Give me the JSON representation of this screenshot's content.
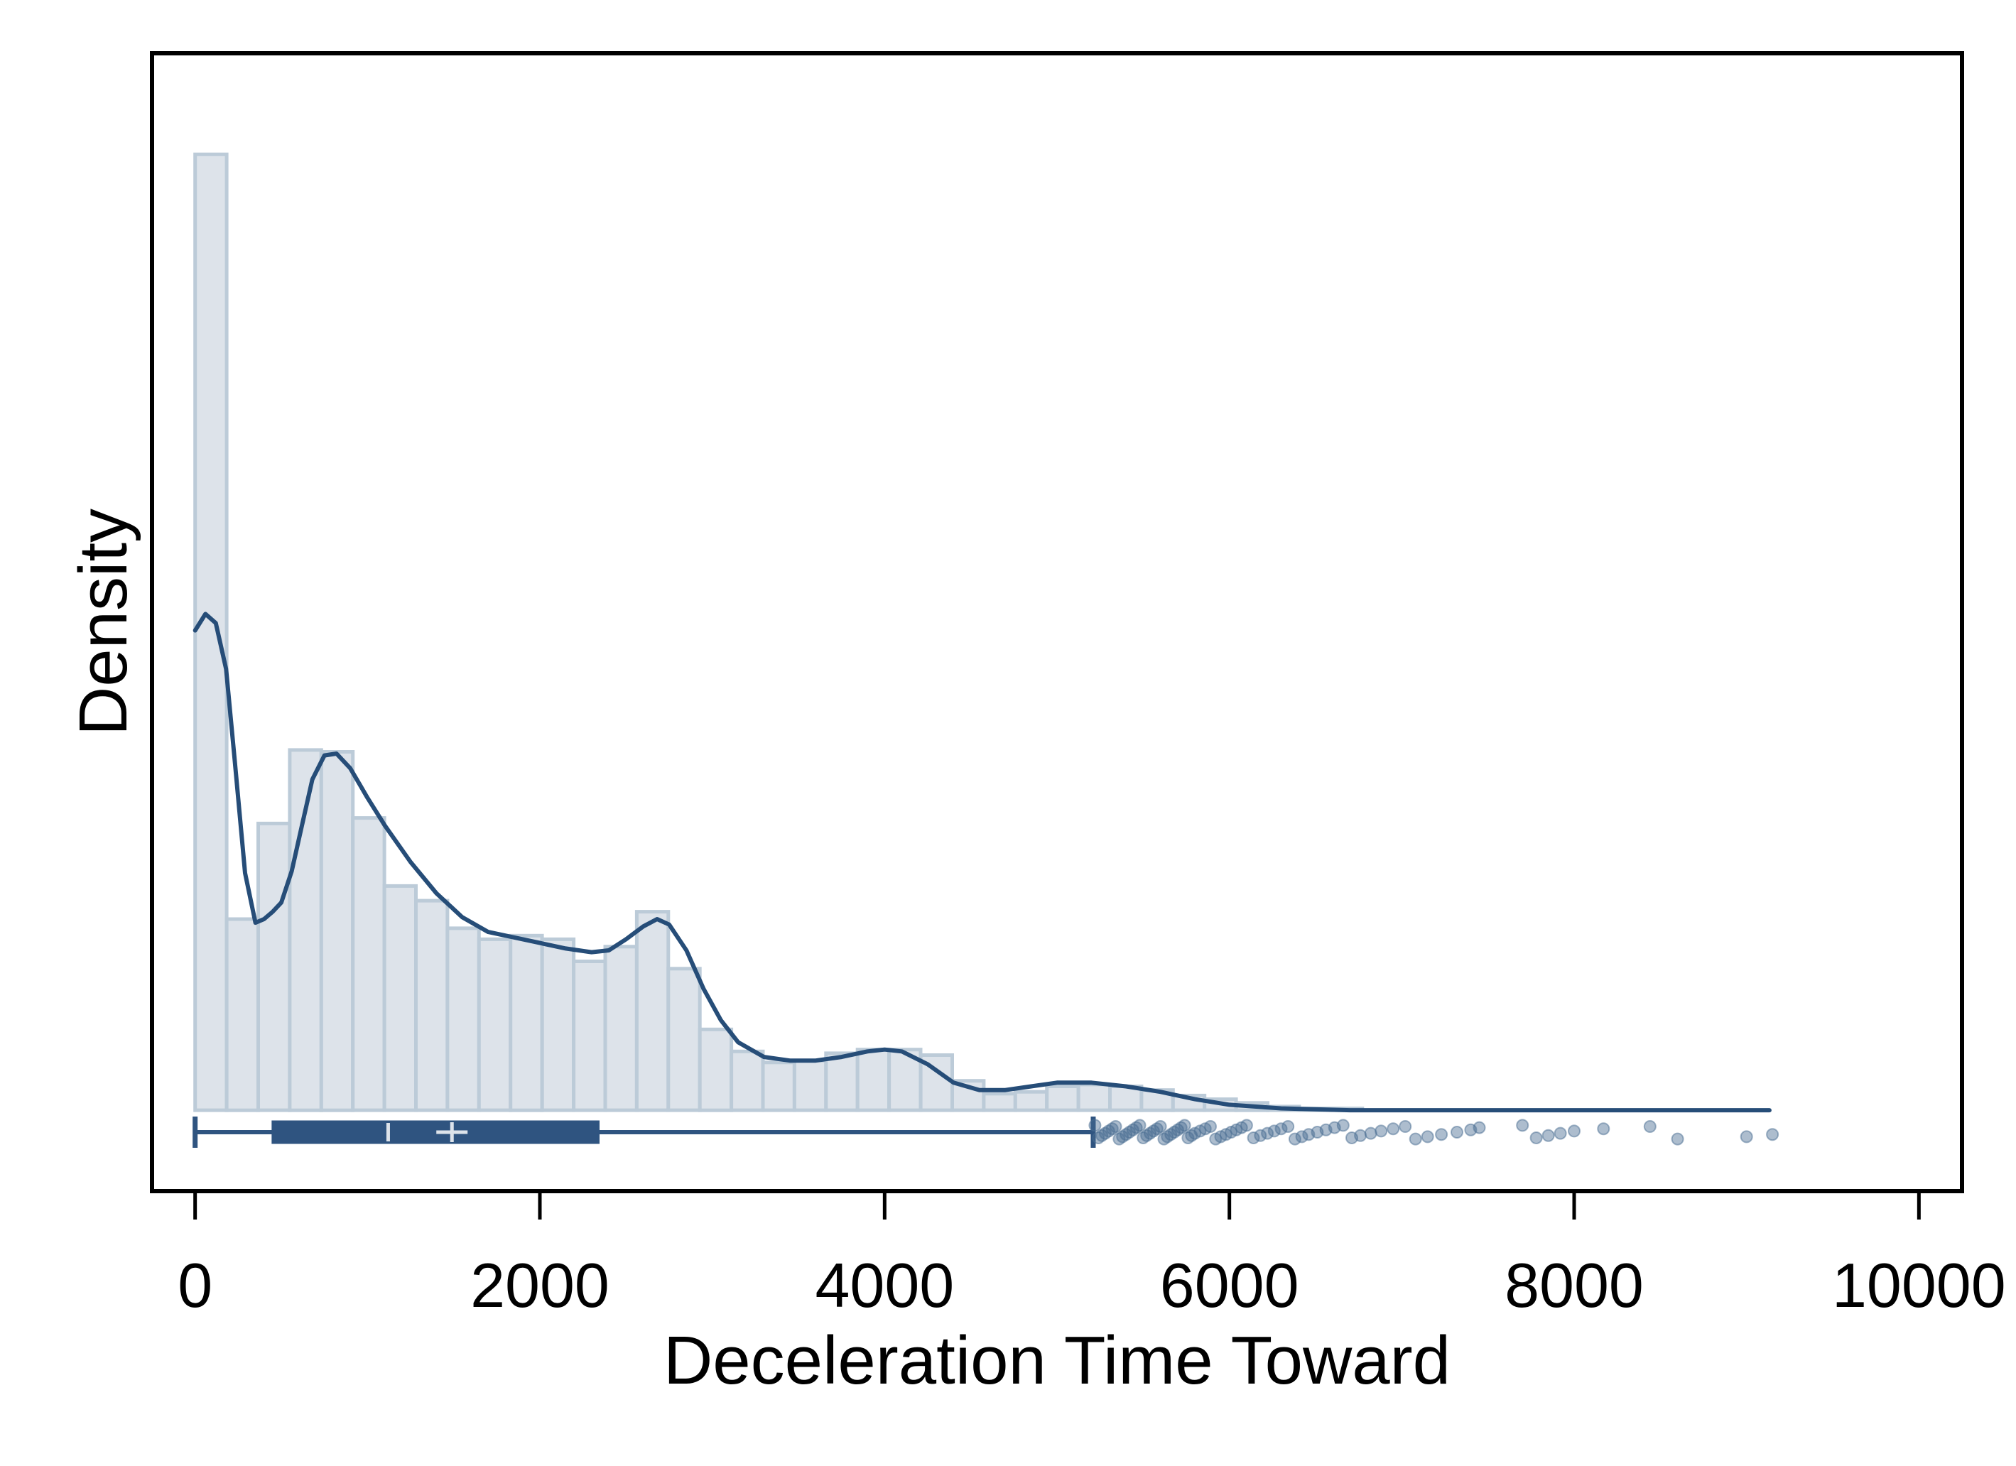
{
  "chart_data": {
    "type": "histogram",
    "xlabel": "Deceleration Time Toward",
    "ylabel": "Density",
    "xlim": [
      -250,
      10250
    ],
    "ylim": [
      -4.4e-05,
      0.000575
    ],
    "xticks": [
      0,
      2000,
      4000,
      6000,
      8000,
      10000
    ],
    "x_tick_labels": [
      "0",
      "2000",
      "4000",
      "6000",
      "8000",
      "10000"
    ],
    "grid": false,
    "legend": "none",
    "colors": {
      "bar_fill": "#dde3ea",
      "bar_edge": "#bccbd8",
      "kde_line": "#264d78",
      "box": "#2f5480",
      "box_median": "#dde3ea",
      "outlier": "#4a6d92"
    },
    "histogram": {
      "bin_width": 183,
      "bins": [
        {
          "x0": 0,
          "density": 0.00052
        },
        {
          "x0": 183,
          "density": 0.000104
        },
        {
          "x0": 366,
          "density": 0.000156
        },
        {
          "x0": 549,
          "density": 0.000196
        },
        {
          "x0": 732,
          "density": 0.000195
        },
        {
          "x0": 915,
          "density": 0.000159
        },
        {
          "x0": 1098,
          "density": 0.000122
        },
        {
          "x0": 1281,
          "density": 0.000114
        },
        {
          "x0": 1464,
          "density": 9.9e-05
        },
        {
          "x0": 1647,
          "density": 9.3e-05
        },
        {
          "x0": 1830,
          "density": 9.5e-05
        },
        {
          "x0": 2013,
          "density": 9.3e-05
        },
        {
          "x0": 2196,
          "density": 8.1e-05
        },
        {
          "x0": 2379,
          "density": 8.9e-05
        },
        {
          "x0": 2562,
          "density": 0.000108
        },
        {
          "x0": 2745,
          "density": 7.7e-05
        },
        {
          "x0": 2928,
          "density": 4.4e-05
        },
        {
          "x0": 3111,
          "density": 3.2e-05
        },
        {
          "x0": 3294,
          "density": 2.6e-05
        },
        {
          "x0": 3477,
          "density": 2.7e-05
        },
        {
          "x0": 3660,
          "density": 3.1e-05
        },
        {
          "x0": 3843,
          "density": 3.3e-05
        },
        {
          "x0": 4026,
          "density": 3.3e-05
        },
        {
          "x0": 4209,
          "density": 3e-05
        },
        {
          "x0": 4392,
          "density": 1.6e-05
        },
        {
          "x0": 4575,
          "density": 9e-06
        },
        {
          "x0": 4758,
          "density": 1e-05
        },
        {
          "x0": 4941,
          "density": 1.3e-05
        },
        {
          "x0": 5124,
          "density": 1.4e-05
        },
        {
          "x0": 5307,
          "density": 1.3e-05
        },
        {
          "x0": 5490,
          "density": 1.1e-05
        },
        {
          "x0": 5673,
          "density": 8e-06
        },
        {
          "x0": 5856,
          "density": 6e-06
        },
        {
          "x0": 6039,
          "density": 4e-06
        },
        {
          "x0": 6222,
          "density": 2e-06
        },
        {
          "x0": 6405,
          "density": 1e-06
        },
        {
          "x0": 6588,
          "density": 1e-06
        }
      ]
    },
    "kde": {
      "x": [
        0,
        60,
        120,
        180,
        230,
        290,
        350,
        400,
        450,
        500,
        560,
        620,
        680,
        750,
        820,
        900,
        1000,
        1100,
        1250,
        1400,
        1550,
        1700,
        1850,
        2000,
        2150,
        2300,
        2400,
        2500,
        2600,
        2680,
        2750,
        2850,
        2950,
        3050,
        3150,
        3300,
        3450,
        3600,
        3750,
        3900,
        4000,
        4100,
        4250,
        4400,
        4550,
        4700,
        4850,
        5000,
        5200,
        5400,
        5600,
        5800,
        6000,
        6300,
        6700,
        7200,
        8000,
        9133
      ],
      "y": [
        0.000261,
        0.00027,
        0.000265,
        0.00024,
        0.00019,
        0.000129,
        0.000102,
        0.000104,
        0.000108,
        0.000113,
        0.00013,
        0.000155,
        0.00018,
        0.000193,
        0.000194,
        0.000186,
        0.00017,
        0.000155,
        0.000135,
        0.000118,
        0.000105,
        9.7e-05,
        9.4e-05,
        9.1e-05,
        8.8e-05,
        8.6e-05,
        8.7e-05,
        9.3e-05,
        0.0001,
        0.000104,
        0.000101,
        8.7e-05,
        6.6e-05,
        4.9e-05,
        3.7e-05,
        2.9e-05,
        2.7e-05,
        2.7e-05,
        2.9e-05,
        3.2e-05,
        3.3e-05,
        3.2e-05,
        2.5e-05,
        1.5e-05,
        1.1e-05,
        1.1e-05,
        1.3e-05,
        1.5e-05,
        1.5e-05,
        1.3e-05,
        1e-05,
        6e-06,
        3e-06,
        1e-06,
        0.0,
        0.0,
        0.0,
        0.0
      ]
    },
    "boxplot": {
      "whisker_low": 0,
      "q1": 450,
      "median": 1120,
      "mean": 1490,
      "q3": 2340,
      "whisker_high": 5210,
      "outliers": [
        5220,
        5240,
        5260,
        5280,
        5300,
        5320,
        5340,
        5360,
        5380,
        5400,
        5420,
        5440,
        5460,
        5480,
        5500,
        5520,
        5540,
        5560,
        5580,
        5600,
        5620,
        5640,
        5660,
        5680,
        5700,
        5720,
        5740,
        5760,
        5780,
        5800,
        5830,
        5860,
        5890,
        5920,
        5950,
        5980,
        6010,
        6040,
        6070,
        6100,
        6140,
        6180,
        6220,
        6260,
        6300,
        6340,
        6380,
        6420,
        6460,
        6510,
        6560,
        6610,
        6660,
        6710,
        6760,
        6820,
        6880,
        6950,
        7020,
        7080,
        7150,
        7230,
        7320,
        7400,
        7450,
        7700,
        7780,
        7850,
        7920,
        8000,
        8170,
        8440,
        8600,
        9000,
        9150
      ]
    }
  }
}
